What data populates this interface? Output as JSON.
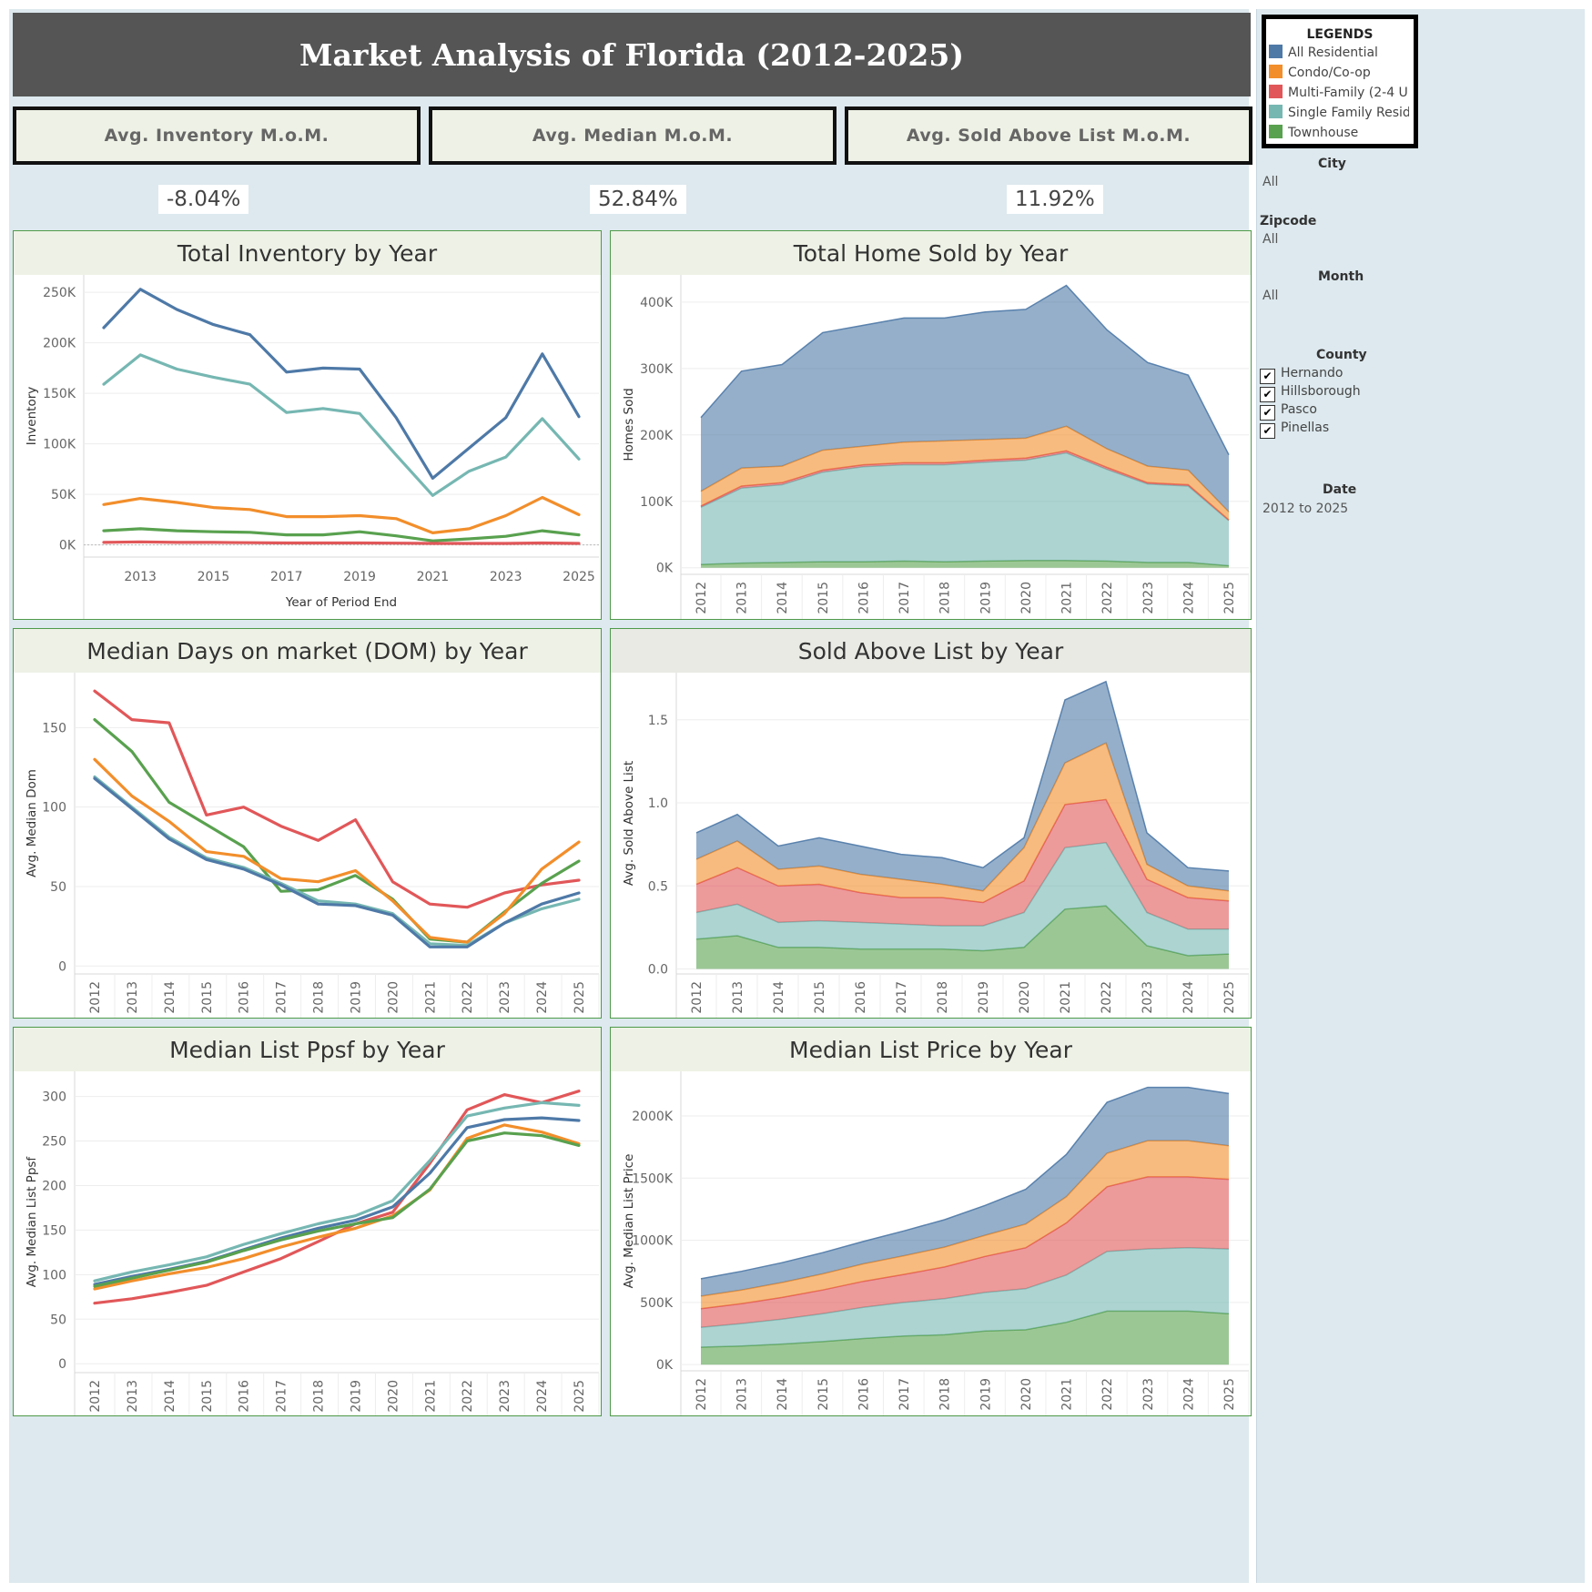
{
  "title": "Market Analysis of Florida (2012-2025)",
  "kpis": [
    {
      "label": "Avg. Inventory M.o.M.",
      "value": "-8.04%"
    },
    {
      "label": "Avg. Median M.o.M.",
      "value": "52.84%"
    },
    {
      "label": "Avg. Sold Above List M.o.M.",
      "value": "11.92%"
    }
  ],
  "colors": {
    "all_residential": "#4e79a7",
    "condo": "#f28e2b",
    "multi_family": "#e15759",
    "single_family": "#76b7b2",
    "townhouse": "#59a14f"
  },
  "legend": {
    "title": "LEGENDS",
    "items": [
      {
        "label": "All Residential",
        "color": "#4e79a7"
      },
      {
        "label": "Condo/Co-op",
        "color": "#f28e2b"
      },
      {
        "label": "Multi-Family (2-4 U..",
        "color": "#e15759"
      },
      {
        "label": "Single Family Resid..",
        "color": "#76b7b2"
      },
      {
        "label": "Townhouse",
        "color": "#59a14f"
      }
    ]
  },
  "filters": {
    "city": {
      "title": "City",
      "value": "All"
    },
    "zipcode": {
      "title": "Zipcode",
      "value": "All"
    },
    "month": {
      "title": "Month",
      "value": "All"
    },
    "county": {
      "title": "County",
      "options": [
        "Hernando",
        "Hillsborough",
        "Pasco",
        "Pinellas"
      ],
      "check": "✔"
    },
    "date": {
      "title": "Date",
      "value": "2012 to 2025"
    }
  },
  "chart_data": [
    {
      "type": "line",
      "title": "Total Inventory by Year",
      "xlabel": "Year of Period End",
      "ylabel": "Inventory",
      "x": [
        2012,
        2013,
        2014,
        2015,
        2016,
        2017,
        2018,
        2019,
        2020,
        2021,
        2022,
        2023,
        2024,
        2025
      ],
      "xticks": [
        "2013",
        "2015",
        "2017",
        "2019",
        "2021",
        "2023",
        "2025"
      ],
      "ylim": [
        -12000,
        260000
      ],
      "yticks": [
        0,
        50000,
        100000,
        150000,
        200000,
        250000
      ],
      "ytick_labels": [
        "0K",
        "50K",
        "100K",
        "150K",
        "200K",
        "250K"
      ],
      "series": [
        {
          "name": "All Residential",
          "values": [
            215000,
            253000,
            233000,
            218000,
            208000,
            171000,
            175000,
            174000,
            126000,
            66000,
            96000,
            126000,
            189000,
            127000
          ]
        },
        {
          "name": "Single Family Residential",
          "values": [
            159000,
            188000,
            174000,
            166000,
            159000,
            131000,
            135000,
            130000,
            89000,
            49000,
            73000,
            87000,
            125000,
            85000
          ]
        },
        {
          "name": "Condo/Co-op",
          "values": [
            40000,
            46000,
            42000,
            37000,
            35000,
            28000,
            28000,
            29000,
            26000,
            12000,
            16000,
            29000,
            47000,
            30000
          ]
        },
        {
          "name": "Townhouse",
          "values": [
            14000,
            16000,
            14000,
            13000,
            12500,
            10000,
            10000,
            13000,
            9000,
            4000,
            6000,
            8500,
            14000,
            10000
          ]
        },
        {
          "name": "Multi-Family (2-4 Unit)",
          "values": [
            2500,
            3000,
            2500,
            2500,
            2200,
            2000,
            2000,
            2000,
            1800,
            1500,
            1500,
            1500,
            2000,
            1500
          ]
        }
      ]
    },
    {
      "type": "area",
      "stacked": true,
      "title": "Total Home Sold by Year",
      "ylabel": "Homes Sold",
      "categories": [
        "2012",
        "2013",
        "2014",
        "2015",
        "2016",
        "2017",
        "2018",
        "2019",
        "2020",
        "2021",
        "2022",
        "2023",
        "2024",
        "2025"
      ],
      "ylim": [
        -10000,
        430000
      ],
      "yticks": [
        0,
        100000,
        200000,
        300000,
        400000
      ],
      "ytick_labels": [
        "0K",
        "100K",
        "200K",
        "300K",
        "400K"
      ],
      "series": [
        {
          "name": "Townhouse",
          "values": [
            5000,
            7000,
            8000,
            9000,
            9000,
            10000,
            9000,
            10000,
            11000,
            11000,
            10000,
            8000,
            8000,
            3000
          ]
        },
        {
          "name": "Single Family Residential",
          "values": [
            86000,
            113000,
            117000,
            135000,
            143000,
            145000,
            146000,
            149000,
            151000,
            162000,
            138000,
            118000,
            115000,
            68000
          ]
        },
        {
          "name": "Multi-Family (2-4 Unit)",
          "values": [
            2000,
            3000,
            3000,
            3000,
            3000,
            3000,
            3000,
            3000,
            3000,
            3000,
            3000,
            2000,
            2000,
            1000
          ]
        },
        {
          "name": "Condo/Co-op",
          "values": [
            22000,
            27000,
            25000,
            30000,
            28000,
            31000,
            33000,
            31000,
            30000,
            37000,
            28000,
            25000,
            22000,
            12000
          ]
        },
        {
          "name": "All Residential",
          "values": [
            111000,
            146000,
            153000,
            177000,
            182000,
            187000,
            185000,
            192000,
            194000,
            212000,
            179000,
            156000,
            143000,
            86000
          ]
        }
      ]
    },
    {
      "type": "line",
      "title": "Median Days on market (DOM) by Year",
      "ylabel": "Avg. Median Dom",
      "categories": [
        "2012",
        "2013",
        "2014",
        "2015",
        "2016",
        "2017",
        "2018",
        "2019",
        "2020",
        "2021",
        "2022",
        "2023",
        "2024",
        "2025"
      ],
      "ylim": [
        -5,
        180
      ],
      "yticks": [
        0,
        50,
        100,
        150
      ],
      "ytick_labels": [
        "0",
        "50",
        "100",
        "150"
      ],
      "series": [
        {
          "name": "Multi-Family (2-4 Unit)",
          "values": [
            173,
            155,
            153,
            95,
            100,
            88,
            79,
            92,
            53,
            39,
            37,
            46,
            51,
            54
          ]
        },
        {
          "name": "Townhouse",
          "values": [
            155,
            135,
            103,
            89,
            75,
            47,
            48,
            57,
            42,
            17,
            15,
            34,
            52,
            66
          ]
        },
        {
          "name": "Condo/Co-op",
          "values": [
            130,
            107,
            91,
            72,
            69,
            55,
            53,
            60,
            41,
            18,
            15,
            33,
            61,
            78
          ]
        },
        {
          "name": "Single Family Residential",
          "values": [
            119,
            100,
            81,
            68,
            62,
            52,
            41,
            39,
            33,
            14,
            13,
            27,
            36,
            42
          ]
        },
        {
          "name": "All Residential",
          "values": [
            118,
            99,
            80,
            67,
            61,
            51,
            39,
            38,
            32,
            12,
            12,
            27,
            39,
            46
          ]
        }
      ]
    },
    {
      "type": "area",
      "stacked": true,
      "title": "Sold Above List by Year",
      "ylabel": "Avg. Sold Above List",
      "categories": [
        "2012",
        "2013",
        "2014",
        "2015",
        "2016",
        "2017",
        "2018",
        "2019",
        "2020",
        "2021",
        "2022",
        "2023",
        "2024",
        "2025"
      ],
      "ylim": [
        -0.03,
        1.74
      ],
      "yticks": [
        0,
        0.5,
        1.0,
        1.5
      ],
      "ytick_labels": [
        "0.0",
        "0.5",
        "1.0",
        "1.5"
      ],
      "series": [
        {
          "name": "Townhouse",
          "values": [
            0.18,
            0.2,
            0.13,
            0.13,
            0.12,
            0.12,
            0.12,
            0.11,
            0.13,
            0.36,
            0.38,
            0.14,
            0.08,
            0.09
          ]
        },
        {
          "name": "Single Family Residential",
          "values": [
            0.16,
            0.19,
            0.15,
            0.16,
            0.16,
            0.15,
            0.14,
            0.15,
            0.21,
            0.37,
            0.38,
            0.2,
            0.16,
            0.15
          ]
        },
        {
          "name": "Multi-Family (2-4 Unit)",
          "values": [
            0.17,
            0.22,
            0.22,
            0.22,
            0.18,
            0.16,
            0.17,
            0.14,
            0.19,
            0.26,
            0.26,
            0.2,
            0.19,
            0.17
          ]
        },
        {
          "name": "Condo/Co-op",
          "values": [
            0.15,
            0.16,
            0.1,
            0.11,
            0.11,
            0.11,
            0.08,
            0.07,
            0.2,
            0.25,
            0.34,
            0.09,
            0.07,
            0.06
          ]
        },
        {
          "name": "All Residential",
          "values": [
            0.16,
            0.16,
            0.14,
            0.17,
            0.17,
            0.15,
            0.16,
            0.14,
            0.06,
            0.38,
            0.37,
            0.19,
            0.11,
            0.12
          ]
        }
      ]
    },
    {
      "type": "line",
      "title": "Median List Ppsf by Year",
      "ylabel": "Avg. Median List Ppsf",
      "categories": [
        "2012",
        "2013",
        "2014",
        "2015",
        "2016",
        "2017",
        "2018",
        "2019",
        "2020",
        "2021",
        "2022",
        "2023",
        "2024",
        "2025"
      ],
      "ylim": [
        -10,
        320
      ],
      "yticks": [
        0,
        50,
        100,
        150,
        200,
        250,
        300
      ],
      "ytick_labels": [
        "0",
        "50",
        "100",
        "150",
        "200",
        "250",
        "300"
      ],
      "series": [
        {
          "name": "Multi-Family (2-4 Unit)",
          "values": [
            68,
            73,
            80,
            88,
            103,
            118,
            137,
            157,
            170,
            225,
            285,
            302,
            293,
            306
          ]
        },
        {
          "name": "Single Family Residential",
          "values": [
            93,
            103,
            111,
            120,
            134,
            146,
            157,
            166,
            183,
            228,
            278,
            287,
            293,
            290
          ]
        },
        {
          "name": "All Residential",
          "values": [
            89,
            98,
            106,
            115,
            128,
            141,
            152,
            161,
            176,
            214,
            265,
            274,
            276,
            273
          ]
        },
        {
          "name": "Condo/Co-op",
          "values": [
            84,
            93,
            101,
            108,
            118,
            131,
            142,
            152,
            166,
            195,
            253,
            268,
            260,
            247
          ]
        },
        {
          "name": "Townhouse",
          "values": [
            87,
            96,
            105,
            114,
            127,
            139,
            149,
            157,
            164,
            196,
            250,
            259,
            256,
            245
          ]
        }
      ]
    },
    {
      "type": "area",
      "stacked": true,
      "title": "Median List Price by Year",
      "ylabel": "Avg. Median List Price",
      "categories": [
        "2012",
        "2013",
        "2014",
        "2015",
        "2016",
        "2017",
        "2018",
        "2019",
        "2020",
        "2021",
        "2022",
        "2023",
        "2024",
        "2025"
      ],
      "ylim": [
        -50000,
        2300000
      ],
      "yticks": [
        0,
        500000,
        1000000,
        1500000,
        2000000
      ],
      "ytick_labels": [
        "0K",
        "500K",
        "1000K",
        "1500K",
        "2000K"
      ],
      "series": [
        {
          "name": "Townhouse",
          "values": [
            140000,
            150000,
            165000,
            185000,
            210000,
            230000,
            240000,
            270000,
            280000,
            340000,
            430000,
            430000,
            430000,
            410000
          ]
        },
        {
          "name": "Single Family Residential",
          "values": [
            160000,
            180000,
            200000,
            225000,
            250000,
            270000,
            290000,
            310000,
            330000,
            380000,
            480000,
            500000,
            510000,
            520000
          ]
        },
        {
          "name": "Multi-Family (2-4 Unit)",
          "values": [
            150000,
            160000,
            175000,
            190000,
            210000,
            225000,
            255000,
            290000,
            330000,
            420000,
            520000,
            580000,
            570000,
            560000
          ]
        },
        {
          "name": "Condo/Co-op",
          "values": [
            100000,
            110000,
            120000,
            130000,
            140000,
            150000,
            160000,
            170000,
            190000,
            210000,
            270000,
            290000,
            290000,
            270000
          ]
        },
        {
          "name": "All Residential",
          "values": [
            140000,
            150000,
            160000,
            170000,
            180000,
            200000,
            220000,
            240000,
            280000,
            340000,
            410000,
            430000,
            430000,
            420000
          ]
        }
      ]
    }
  ]
}
